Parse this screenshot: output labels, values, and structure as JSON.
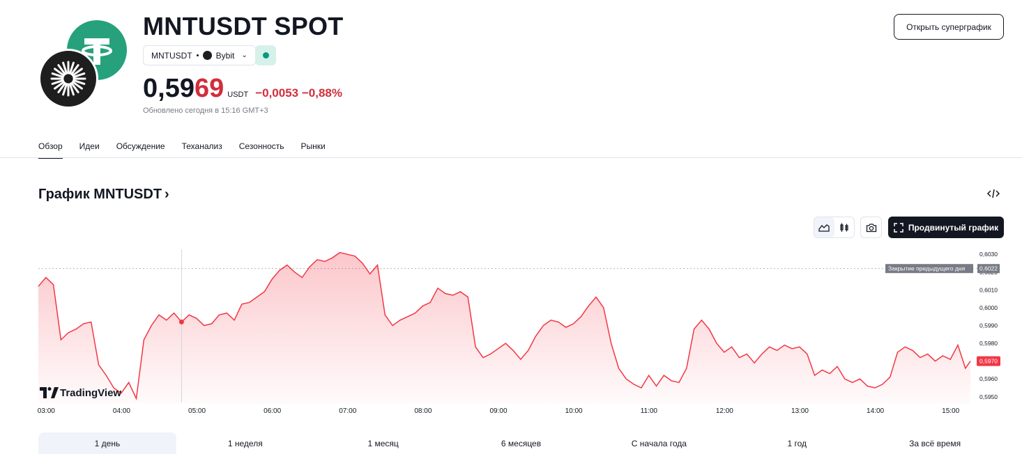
{
  "header": {
    "title": "MNTUSDT SPOT",
    "symbol_pill": {
      "symbol": "MNTUSDT",
      "exchange": "Bybit"
    },
    "price_main": "0,59",
    "price_tail": "69",
    "price_unit": "USDT",
    "change": "−0,0053 −0,88%",
    "updated": "Обновлено сегодня в 15:16 GMT+3",
    "open_superchart": "Открыть суперграфик",
    "status_color": "#089981"
  },
  "tabs": [
    {
      "label": "Обзор",
      "active": true
    },
    {
      "label": "Идеи"
    },
    {
      "label": "Обсуждение"
    },
    {
      "label": "Теханализ"
    },
    {
      "label": "Сезонность"
    },
    {
      "label": "Рынки"
    }
  ],
  "chart_section": {
    "title": "График MNTUSDT",
    "title_arrow": "›",
    "advanced_button": "Продвинутый график",
    "brand": "TradingView",
    "prev_close_label": "Закрытие предыдущего дня",
    "prev_close_value": "0,6022",
    "last_price_label": "0,5970"
  },
  "chart_data": {
    "type": "area",
    "x_ticks": [
      "03:00",
      "04:00",
      "05:00",
      "06:00",
      "07:00",
      "08:00",
      "09:00",
      "10:00",
      "11:00",
      "12:00",
      "13:00",
      "14:00",
      "15:00"
    ],
    "y_ticks": [
      "0,6030",
      "0,6020",
      "0,6010",
      "0,6000",
      "0,5990",
      "0,5980",
      "0,5970",
      "0,5960",
      "0,5950"
    ],
    "ylim": [
      0.5946,
      0.6034
    ],
    "prev_close": 0.6022,
    "last": 0.597,
    "line_color": "#f23645",
    "series": [
      {
        "t": "02:54",
        "v": 0.6012
      },
      {
        "t": "03:00",
        "v": 0.6017
      },
      {
        "t": "03:06",
        "v": 0.6013
      },
      {
        "t": "03:12",
        "v": 0.5982
      },
      {
        "t": "03:18",
        "v": 0.5986
      },
      {
        "t": "03:24",
        "v": 0.5988
      },
      {
        "t": "03:30",
        "v": 0.5991
      },
      {
        "t": "03:36",
        "v": 0.5992
      },
      {
        "t": "03:42",
        "v": 0.5968
      },
      {
        "t": "03:48",
        "v": 0.5962
      },
      {
        "t": "03:54",
        "v": 0.5955
      },
      {
        "t": "04:00",
        "v": 0.5952
      },
      {
        "t": "04:06",
        "v": 0.5958
      },
      {
        "t": "04:12",
        "v": 0.5949
      },
      {
        "t": "04:18",
        "v": 0.5982
      },
      {
        "t": "04:24",
        "v": 0.599
      },
      {
        "t": "04:30",
        "v": 0.5996
      },
      {
        "t": "04:36",
        "v": 0.5993
      },
      {
        "t": "04:42",
        "v": 0.5997
      },
      {
        "t": "04:48",
        "v": 0.5992
      },
      {
        "t": "04:54",
        "v": 0.5996
      },
      {
        "t": "05:00",
        "v": 0.5994
      },
      {
        "t": "05:06",
        "v": 0.599
      },
      {
        "t": "05:12",
        "v": 0.5991
      },
      {
        "t": "05:18",
        "v": 0.5996
      },
      {
        "t": "05:24",
        "v": 0.5997
      },
      {
        "t": "05:30",
        "v": 0.5993
      },
      {
        "t": "05:36",
        "v": 0.6002
      },
      {
        "t": "05:42",
        "v": 0.6003
      },
      {
        "t": "05:48",
        "v": 0.6006
      },
      {
        "t": "05:54",
        "v": 0.6009
      },
      {
        "t": "06:00",
        "v": 0.6016
      },
      {
        "t": "06:06",
        "v": 0.6021
      },
      {
        "t": "06:12",
        "v": 0.6024
      },
      {
        "t": "06:18",
        "v": 0.602
      },
      {
        "t": "06:24",
        "v": 0.6017
      },
      {
        "t": "06:30",
        "v": 0.6023
      },
      {
        "t": "06:36",
        "v": 0.6027
      },
      {
        "t": "06:42",
        "v": 0.6026
      },
      {
        "t": "06:48",
        "v": 0.6028
      },
      {
        "t": "06:54",
        "v": 0.6031
      },
      {
        "t": "07:00",
        "v": 0.603
      },
      {
        "t": "07:06",
        "v": 0.6029
      },
      {
        "t": "07:12",
        "v": 0.6025
      },
      {
        "t": "07:18",
        "v": 0.6019
      },
      {
        "t": "07:24",
        "v": 0.6024
      },
      {
        "t": "07:30",
        "v": 0.5996
      },
      {
        "t": "07:36",
        "v": 0.599
      },
      {
        "t": "07:42",
        "v": 0.5993
      },
      {
        "t": "07:48",
        "v": 0.5995
      },
      {
        "t": "07:54",
        "v": 0.5997
      },
      {
        "t": "08:00",
        "v": 0.6001
      },
      {
        "t": "08:06",
        "v": 0.6003
      },
      {
        "t": "08:12",
        "v": 0.6011
      },
      {
        "t": "08:18",
        "v": 0.6008
      },
      {
        "t": "08:24",
        "v": 0.6007
      },
      {
        "t": "08:30",
        "v": 0.6009
      },
      {
        "t": "08:36",
        "v": 0.6006
      },
      {
        "t": "08:42",
        "v": 0.5978
      },
      {
        "t": "08:48",
        "v": 0.5972
      },
      {
        "t": "08:54",
        "v": 0.5974
      },
      {
        "t": "09:00",
        "v": 0.5977
      },
      {
        "t": "09:06",
        "v": 0.598
      },
      {
        "t": "09:12",
        "v": 0.5976
      },
      {
        "t": "09:18",
        "v": 0.5971
      },
      {
        "t": "09:24",
        "v": 0.5976
      },
      {
        "t": "09:30",
        "v": 0.5984
      },
      {
        "t": "09:36",
        "v": 0.599
      },
      {
        "t": "09:42",
        "v": 0.5993
      },
      {
        "t": "09:48",
        "v": 0.5992
      },
      {
        "t": "09:54",
        "v": 0.5989
      },
      {
        "t": "10:00",
        "v": 0.5991
      },
      {
        "t": "10:06",
        "v": 0.5995
      },
      {
        "t": "10:12",
        "v": 0.6001
      },
      {
        "t": "10:18",
        "v": 0.6006
      },
      {
        "t": "10:24",
        "v": 0.6
      },
      {
        "t": "10:30",
        "v": 0.598
      },
      {
        "t": "10:36",
        "v": 0.5966
      },
      {
        "t": "10:42",
        "v": 0.596
      },
      {
        "t": "10:48",
        "v": 0.5957
      },
      {
        "t": "10:54",
        "v": 0.5955
      },
      {
        "t": "11:00",
        "v": 0.5962
      },
      {
        "t": "11:06",
        "v": 0.5956
      },
      {
        "t": "11:12",
        "v": 0.5962
      },
      {
        "t": "11:18",
        "v": 0.5959
      },
      {
        "t": "11:24",
        "v": 0.5958
      },
      {
        "t": "11:30",
        "v": 0.5966
      },
      {
        "t": "11:36",
        "v": 0.5988
      },
      {
        "t": "11:42",
        "v": 0.5993
      },
      {
        "t": "11:48",
        "v": 0.5988
      },
      {
        "t": "11:54",
        "v": 0.598
      },
      {
        "t": "12:00",
        "v": 0.5975
      },
      {
        "t": "12:06",
        "v": 0.5978
      },
      {
        "t": "12:12",
        "v": 0.5972
      },
      {
        "t": "12:18",
        "v": 0.5974
      },
      {
        "t": "12:24",
        "v": 0.5969
      },
      {
        "t": "12:30",
        "v": 0.5974
      },
      {
        "t": "12:36",
        "v": 0.5978
      },
      {
        "t": "12:42",
        "v": 0.5976
      },
      {
        "t": "12:48",
        "v": 0.5979
      },
      {
        "t": "12:54",
        "v": 0.5977
      },
      {
        "t": "13:00",
        "v": 0.5978
      },
      {
        "t": "13:06",
        "v": 0.5974
      },
      {
        "t": "13:12",
        "v": 0.5962
      },
      {
        "t": "13:18",
        "v": 0.5965
      },
      {
        "t": "13:24",
        "v": 0.5963
      },
      {
        "t": "13:30",
        "v": 0.5967
      },
      {
        "t": "13:36",
        "v": 0.596
      },
      {
        "t": "13:42",
        "v": 0.5958
      },
      {
        "t": "13:48",
        "v": 0.596
      },
      {
        "t": "13:54",
        "v": 0.5956
      },
      {
        "t": "14:00",
        "v": 0.5955
      },
      {
        "t": "14:06",
        "v": 0.5957
      },
      {
        "t": "14:12",
        "v": 0.5961
      },
      {
        "t": "14:18",
        "v": 0.5975
      },
      {
        "t": "14:24",
        "v": 0.5978
      },
      {
        "t": "14:30",
        "v": 0.5976
      },
      {
        "t": "14:36",
        "v": 0.5972
      },
      {
        "t": "14:42",
        "v": 0.5974
      },
      {
        "t": "14:48",
        "v": 0.597
      },
      {
        "t": "14:54",
        "v": 0.5973
      },
      {
        "t": "15:00",
        "v": 0.5971
      },
      {
        "t": "15:06",
        "v": 0.5979
      },
      {
        "t": "15:12",
        "v": 0.5966
      },
      {
        "t": "15:16",
        "v": 0.597
      }
    ]
  },
  "ranges": [
    {
      "label": "1 день",
      "active": true
    },
    {
      "label": "1 неделя"
    },
    {
      "label": "1 месяц"
    },
    {
      "label": "6 месяцев"
    },
    {
      "label": "С начала года"
    },
    {
      "label": "1 год"
    },
    {
      "label": "За всё время"
    }
  ]
}
